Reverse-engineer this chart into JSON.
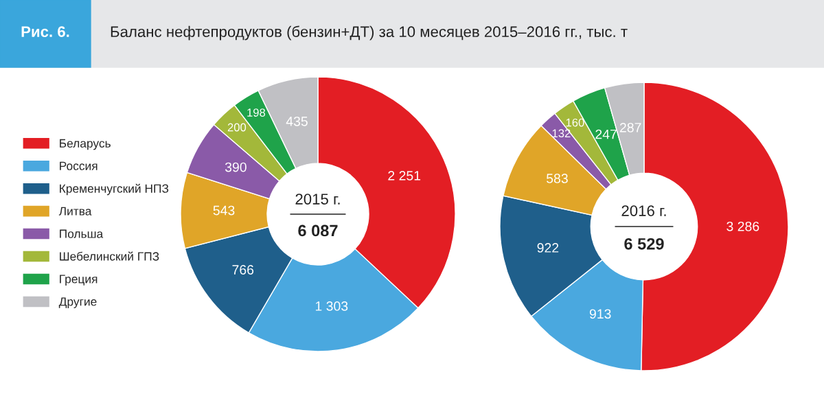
{
  "chart_data": [
    {
      "type": "donut",
      "title": "Баланс нефтепродуктов (бензин+ДТ) за 10 месяцев 2015–2016 гг., тыс. т",
      "annotations": [
        "Рис. 6.",
        "2015 г.",
        "6 087"
      ],
      "legend": "left",
      "categories": [
        "Беларусь",
        "Россия",
        "Кременчугский НПЗ",
        "Литва",
        "Польша",
        "Шебелинский ГПЗ",
        "Греция",
        "Другие"
      ],
      "values": [
        2251,
        1303,
        766,
        543,
        390,
        200,
        198,
        435
      ],
      "value_labels": [
        "2 251",
        "1 303",
        "766",
        "543",
        "390",
        "200",
        "198",
        "435"
      ],
      "colors": [
        "#e31e24",
        "#4aa8df",
        "#1f5f8b",
        "#e0a528",
        "#8a5aa8",
        "#a3b83a",
        "#1fa34a",
        "#c0c0c4"
      ]
    },
    {
      "type": "donut",
      "annotations": [
        "2016 г.",
        "6 529"
      ],
      "values": [
        3286,
        913,
        922,
        583,
        132,
        160,
        247,
        287
      ],
      "value_labels": [
        "3 286",
        "913",
        "922",
        "583",
        "132",
        "160",
        "247",
        "287"
      ],
      "colors": [
        "#e31e24",
        "#4aa8df",
        "#1f5f8b",
        "#e0a528",
        "#8a5aa8",
        "#a3b83a",
        "#1fa34a",
        "#c0c0c4"
      ]
    }
  ]
}
